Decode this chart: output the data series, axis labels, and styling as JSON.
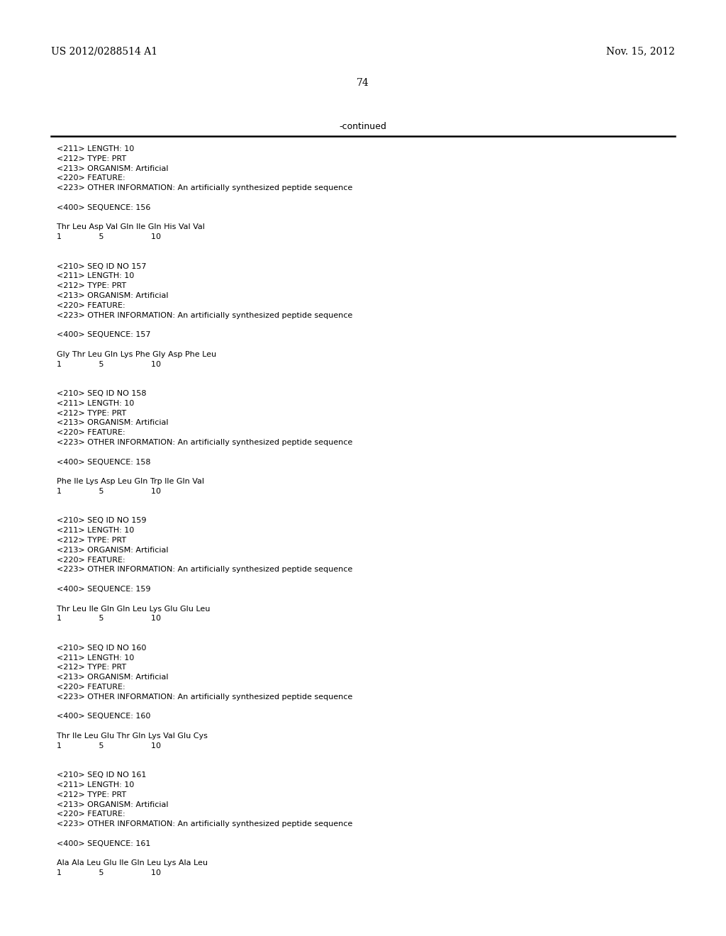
{
  "header_left": "US 2012/0288514 A1",
  "header_right": "Nov. 15, 2012",
  "page_number": "74",
  "continued_text": "-continued",
  "background_color": "#ffffff",
  "text_color": "#000000",
  "content_lines": [
    "<211> LENGTH: 10",
    "<212> TYPE: PRT",
    "<213> ORGANISM: Artificial",
    "<220> FEATURE:",
    "<223> OTHER INFORMATION: An artificially synthesized peptide sequence",
    "",
    "<400> SEQUENCE: 156",
    "",
    "Thr Leu Asp Val Gln Ile Gln His Val Val",
    "1               5                   10",
    "",
    "",
    "<210> SEQ ID NO 157",
    "<211> LENGTH: 10",
    "<212> TYPE: PRT",
    "<213> ORGANISM: Artificial",
    "<220> FEATURE:",
    "<223> OTHER INFORMATION: An artificially synthesized peptide sequence",
    "",
    "<400> SEQUENCE: 157",
    "",
    "Gly Thr Leu Gln Lys Phe Gly Asp Phe Leu",
    "1               5                   10",
    "",
    "",
    "<210> SEQ ID NO 158",
    "<211> LENGTH: 10",
    "<212> TYPE: PRT",
    "<213> ORGANISM: Artificial",
    "<220> FEATURE:",
    "<223> OTHER INFORMATION: An artificially synthesized peptide sequence",
    "",
    "<400> SEQUENCE: 158",
    "",
    "Phe Ile Lys Asp Leu Gln Trp Ile Gln Val",
    "1               5                   10",
    "",
    "",
    "<210> SEQ ID NO 159",
    "<211> LENGTH: 10",
    "<212> TYPE: PRT",
    "<213> ORGANISM: Artificial",
    "<220> FEATURE:",
    "<223> OTHER INFORMATION: An artificially synthesized peptide sequence",
    "",
    "<400> SEQUENCE: 159",
    "",
    "Thr Leu Ile Gln Gln Leu Lys Glu Glu Leu",
    "1               5                   10",
    "",
    "",
    "<210> SEQ ID NO 160",
    "<211> LENGTH: 10",
    "<212> TYPE: PRT",
    "<213> ORGANISM: Artificial",
    "<220> FEATURE:",
    "<223> OTHER INFORMATION: An artificially synthesized peptide sequence",
    "",
    "<400> SEQUENCE: 160",
    "",
    "Thr Ile Leu Glu Thr Gln Lys Val Glu Cys",
    "1               5                   10",
    "",
    "",
    "<210> SEQ ID NO 161",
    "<211> LENGTH: 10",
    "<212> TYPE: PRT",
    "<213> ORGANISM: Artificial",
    "<220> FEATURE:",
    "<223> OTHER INFORMATION: An artificially synthesized peptide sequence",
    "",
    "<400> SEQUENCE: 161",
    "",
    "Ala Ala Leu Glu Ile Gln Leu Lys Ala Leu",
    "1               5                   10"
  ]
}
